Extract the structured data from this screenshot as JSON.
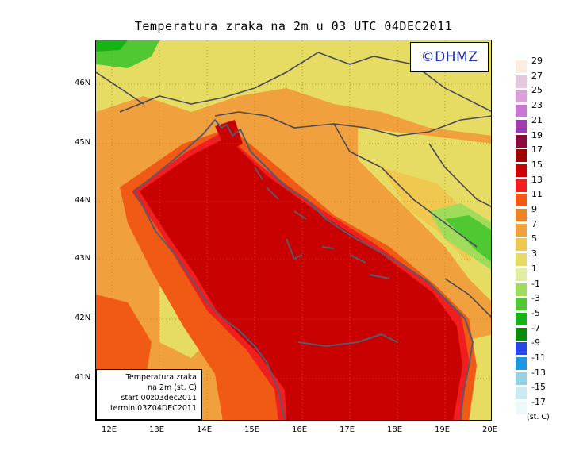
{
  "title": "Temperatura zraka na 2m u 03 UTC 04DEC2011",
  "copyright": "©DHMZ",
  "info_box": {
    "line1": "Temperatura zraka",
    "line2": "na 2m (st. C)",
    "line3": "start 00z03dec2011",
    "line4": "termin 03Z04DEC2011"
  },
  "legend_unit": "(st. C)",
  "legend": [
    {
      "label": "29",
      "color": "#fbeee0"
    },
    {
      "label": "27",
      "color": "#e6c8dc"
    },
    {
      "label": "25",
      "color": "#dca0d8"
    },
    {
      "label": "23",
      "color": "#c878d4"
    },
    {
      "label": "21",
      "color": "#a03cb4"
    },
    {
      "label": "19",
      "color": "#8c0a3c"
    },
    {
      "label": "17",
      "color": "#a00000"
    },
    {
      "label": "15",
      "color": "#c80000"
    },
    {
      "label": "13",
      "color": "#f01e1e"
    },
    {
      "label": "11",
      "color": "#f05a14"
    },
    {
      "label": "9",
      "color": "#f08228"
    },
    {
      "label": "7",
      "color": "#f0a03c"
    },
    {
      "label": "5",
      "color": "#f0c850"
    },
    {
      "label": "3",
      "color": "#e6dc64"
    },
    {
      "label": "1",
      "color": "#dcf0a0"
    },
    {
      "label": "-1",
      "color": "#a0dc5a"
    },
    {
      "label": "-3",
      "color": "#50c832"
    },
    {
      "label": "-5",
      "color": "#14b414"
    },
    {
      "label": "-7",
      "color": "#0a8c0a"
    },
    {
      "label": "-9",
      "color": "#2846e6"
    },
    {
      "label": "-11",
      "color": "#1e96e6"
    },
    {
      "label": "-13",
      "color": "#96d2e6"
    },
    {
      "label": "-15",
      "color": "#c8eaf0"
    },
    {
      "label": "-17",
      "color": "#eefafa"
    }
  ],
  "y_axis": [
    {
      "label": "46N"
    },
    {
      "label": "45N"
    },
    {
      "label": "44N"
    },
    {
      "label": "43N"
    },
    {
      "label": "42N"
    },
    {
      "label": "41N"
    }
  ],
  "x_axis": [
    {
      "label": "12E"
    },
    {
      "label": "13E"
    },
    {
      "label": "14E"
    },
    {
      "label": "15E"
    },
    {
      "label": "16E"
    },
    {
      "label": "17E"
    },
    {
      "label": "18E"
    },
    {
      "label": "19E"
    },
    {
      "label": "20E"
    }
  ]
}
